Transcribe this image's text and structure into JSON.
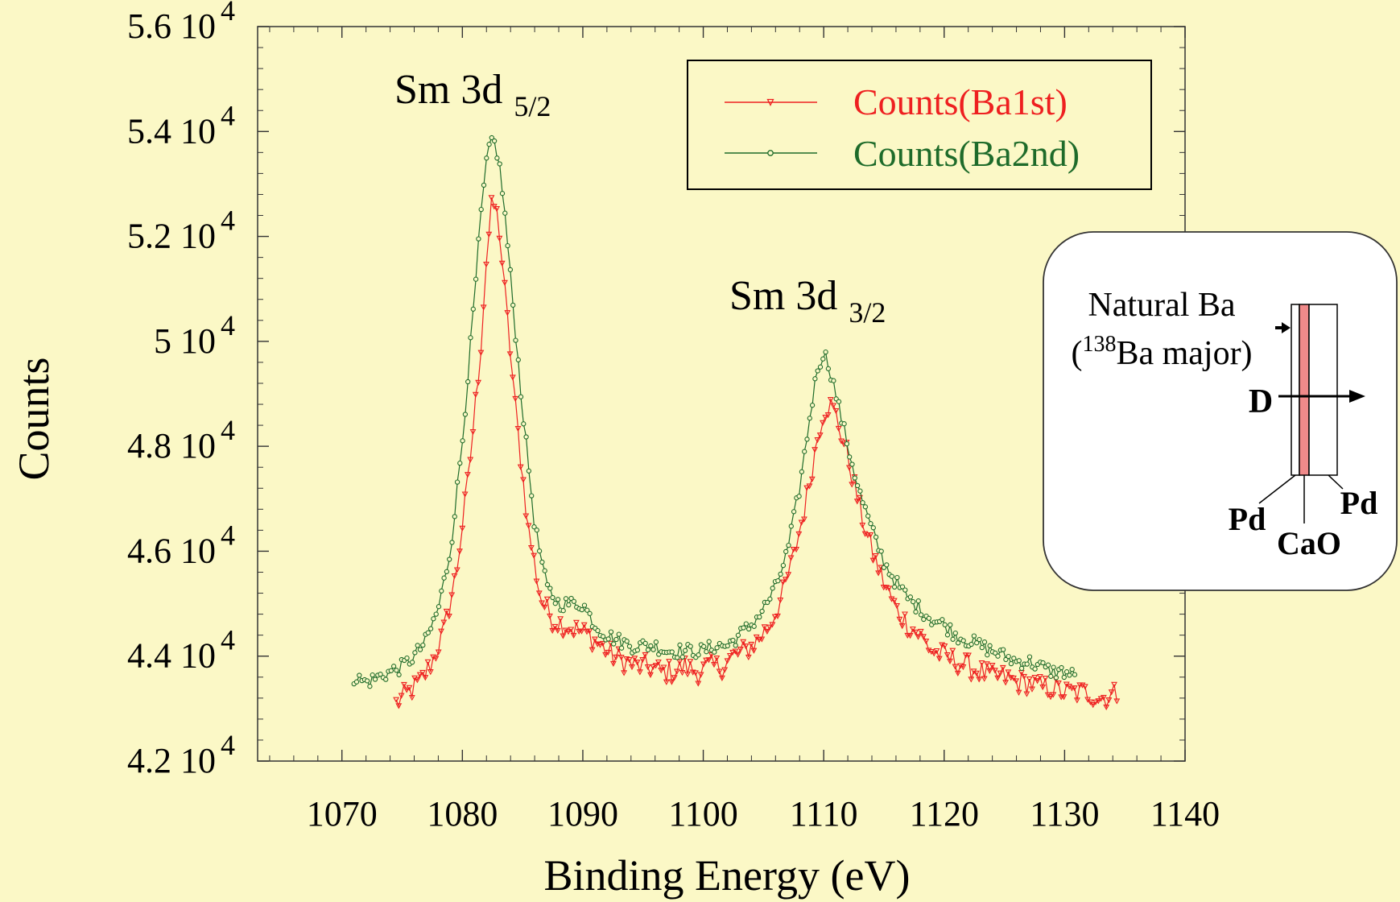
{
  "chart_data": {
    "type": "line",
    "title": "",
    "xlabel": "Binding Energy (eV)",
    "ylabel": "Counts",
    "xlim": [
      1063,
      1140
    ],
    "ylim": [
      42000,
      56000
    ],
    "x_ticks": [
      1070,
      1080,
      1090,
      1100,
      1110,
      1120,
      1130,
      1140
    ],
    "y_ticks": [
      {
        "value": 42000,
        "mantissa": "4.2 10",
        "exp": "4"
      },
      {
        "value": 44000,
        "mantissa": "4.4 10",
        "exp": "4"
      },
      {
        "value": 46000,
        "mantissa": "4.6 10",
        "exp": "4"
      },
      {
        "value": 48000,
        "mantissa": "4.8 10",
        "exp": "4"
      },
      {
        "value": 50000,
        "mantissa": "5 10",
        "exp": "4"
      },
      {
        "value": 52000,
        "mantissa": "5.2 10",
        "exp": "4"
      },
      {
        "value": 54000,
        "mantissa": "5.4 10",
        "exp": "4"
      },
      {
        "value": 56000,
        "mantissa": "5.6 10",
        "exp": "4"
      }
    ],
    "grid": false,
    "legend_position": "top-right",
    "annotations": [
      {
        "text": "Sm 3d",
        "sub": "5/2",
        "x": 1082.5,
        "y": 55100
      },
      {
        "text": "Sm 3d",
        "sub": "3/2",
        "x": 1110,
        "y": 50850
      }
    ],
    "series": [
      {
        "name": "Counts(Ba1st)",
        "color": "#ee2020",
        "marker": "triangle-down",
        "x": [
          1074.5,
          1075.5,
          1076.5,
          1077.5,
          1078.5,
          1079.5,
          1080.5,
          1081.5,
          1082.0,
          1082.5,
          1083.0,
          1083.5,
          1084.5,
          1085.5,
          1086.5,
          1087.5,
          1088.5,
          1089.5,
          1090.5,
          1091.5,
          1092.5,
          1093.5,
          1094.5,
          1095.5,
          1096.5,
          1097.5,
          1098.5,
          1099.5,
          1100.5,
          1101.5,
          1102.5,
          1103.5,
          1104.5,
          1105.5,
          1106.5,
          1107.5,
          1108.5,
          1109.5,
          1110.0,
          1110.5,
          1111.0,
          1112.0,
          1113.0,
          1114.0,
          1115.0,
          1116.0,
          1117.0,
          1118.0,
          1119.0,
          1120.0,
          1121.0,
          1122.0,
          1123.0,
          1124.0,
          1125.0,
          1126.0,
          1127.0,
          1128.0,
          1129.0,
          1130.0,
          1131.0,
          1132.0,
          1133.0,
          1134.5
        ],
        "y": [
          43100,
          43300,
          43500,
          43900,
          44500,
          45600,
          47400,
          49800,
          51600,
          52700,
          52300,
          51000,
          48500,
          46400,
          45100,
          44700,
          44600,
          44500,
          44400,
          44200,
          44000,
          43900,
          43800,
          43800,
          43700,
          43700,
          43800,
          43700,
          43800,
          43800,
          44000,
          44100,
          44300,
          44600,
          45100,
          45900,
          46900,
          48200,
          48700,
          48800,
          48600,
          47800,
          46800,
          46000,
          45400,
          44900,
          44600,
          44400,
          44100,
          44000,
          43900,
          43800,
          43700,
          43600,
          43600,
          43500,
          43500,
          43400,
          43400,
          43300,
          43300,
          43300,
          43200,
          43300
        ]
      },
      {
        "name": "Counts(Ba2nd)",
        "color": "#1e6b2a",
        "marker": "circle",
        "x": [
          1071.0,
          1072.0,
          1073.0,
          1074.0,
          1075.0,
          1076.0,
          1077.0,
          1078.0,
          1079.0,
          1080.0,
          1081.0,
          1081.5,
          1082.0,
          1082.5,
          1083.0,
          1083.5,
          1084.0,
          1085.0,
          1086.0,
          1087.0,
          1088.0,
          1089.0,
          1090.0,
          1091.0,
          1092.0,
          1093.0,
          1094.0,
          1095.0,
          1096.0,
          1097.0,
          1098.0,
          1099.0,
          1100.0,
          1101.0,
          1102.0,
          1103.0,
          1104.0,
          1105.0,
          1106.0,
          1107.0,
          1108.0,
          1109.0,
          1109.5,
          1110.0,
          1110.5,
          1111.0,
          1112.0,
          1113.0,
          1114.0,
          1115.0,
          1116.0,
          1117.0,
          1118.0,
          1119.0,
          1120.0,
          1121.0,
          1122.0,
          1123.0,
          1124.0,
          1125.0,
          1126.0,
          1127.0,
          1128.0,
          1129.0,
          1130.0,
          1131.0
        ],
        "y": [
          43600,
          43500,
          43600,
          43700,
          43800,
          44000,
          44300,
          44900,
          46000,
          48100,
          50800,
          52300,
          53400,
          53900,
          53500,
          52500,
          51200,
          48700,
          46500,
          45300,
          45000,
          45000,
          45000,
          44600,
          44400,
          44300,
          44200,
          44200,
          44200,
          44100,
          44100,
          44100,
          44100,
          44200,
          44200,
          44400,
          44600,
          44900,
          45300,
          46000,
          47200,
          48800,
          49500,
          49800,
          49500,
          49000,
          48000,
          47100,
          46400,
          45800,
          45400,
          45100,
          44900,
          44700,
          44600,
          44400,
          44300,
          44200,
          44100,
          44000,
          43900,
          43900,
          43800,
          43700,
          43700,
          43600
        ]
      }
    ]
  },
  "inset": {
    "title_line1": "Natural Ba",
    "title_line2_open": "(",
    "title_line2_sup": "138",
    "title_line2_rest": "Ba major)",
    "arrow_label": "D",
    "label_pd_left": "Pd",
    "label_cao": "CaO",
    "label_pd_right": "Pd"
  }
}
